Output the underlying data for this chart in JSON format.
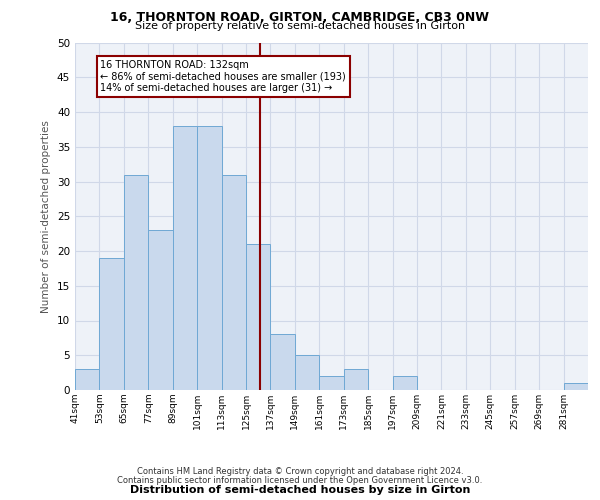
{
  "title1": "16, THORNTON ROAD, GIRTON, CAMBRIDGE, CB3 0NW",
  "title2": "Size of property relative to semi-detached houses in Girton",
  "xlabel": "Distribution of semi-detached houses by size in Girton",
  "ylabel": "Number of semi-detached properties",
  "footer1": "Contains HM Land Registry data © Crown copyright and database right 2024.",
  "footer2": "Contains public sector information licensed under the Open Government Licence v3.0.",
  "bin_labels": [
    "41sqm",
    "53sqm",
    "65sqm",
    "77sqm",
    "89sqm",
    "101sqm",
    "113sqm",
    "125sqm",
    "137sqm",
    "149sqm",
    "161sqm",
    "173sqm",
    "185sqm",
    "197sqm",
    "209sqm",
    "221sqm",
    "233sqm",
    "245sqm",
    "257sqm",
    "269sqm",
    "281sqm"
  ],
  "values": [
    3,
    19,
    31,
    23,
    38,
    38,
    31,
    21,
    8,
    5,
    2,
    3,
    0,
    2,
    0,
    0,
    0,
    0,
    0,
    0,
    1
  ],
  "bin_edges": [
    41,
    53,
    65,
    77,
    89,
    101,
    113,
    125,
    137,
    149,
    161,
    173,
    185,
    197,
    209,
    221,
    233,
    245,
    257,
    269,
    281,
    293
  ],
  "property_size": 132,
  "property_label": "16 THORNTON ROAD: 132sqm",
  "pct_smaller": 86,
  "count_smaller": 193,
  "pct_larger": 14,
  "count_larger": 31,
  "bar_facecolor": "#c9d9ed",
  "bar_edgecolor": "#6fa8d4",
  "vline_color": "#8b0000",
  "annotation_box_color": "#8b0000",
  "grid_color": "#d0d8e8",
  "bg_color": "#eef2f8",
  "ylim": [
    0,
    50
  ],
  "yticks": [
    0,
    5,
    10,
    15,
    20,
    25,
    30,
    35,
    40,
    45,
    50
  ]
}
